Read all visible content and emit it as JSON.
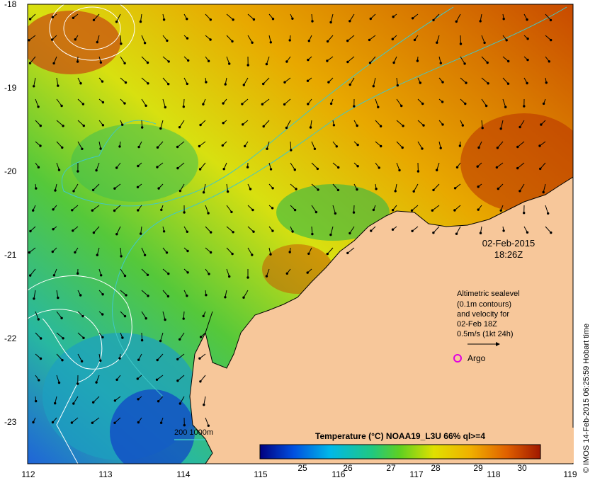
{
  "map": {
    "lon_ticks": [
      "112",
      "113",
      "114",
      "115",
      "116",
      "117",
      "118",
      "119"
    ],
    "lat_ticks": [
      "-18",
      "-19",
      "-20",
      "-21",
      "-22",
      "-23"
    ],
    "date": "02-Feb-2015",
    "time": "18:26Z",
    "legend_lines": [
      "Altimetric sealevel",
      "(0.1m contours)",
      "and velocity for",
      "02-Feb 18Z",
      "0.5m/s (1kt 24h)"
    ],
    "argo_label": "Argo",
    "depth_label": "200  1000m",
    "colorbar_title": "Temperature (°C) NOAA19_L3U 66% ql>=4",
    "colorbar_ticks": [
      "25",
      "26",
      "27",
      "28",
      "29",
      "30"
    ],
    "credit": "© IMOS 14-Feb-2015 06:25:59 Hobart time",
    "colors": {
      "land": "#f7c79a",
      "argo": "#e000e0",
      "bathymetry_contour": "#40c8c8",
      "sealevel_contour": "#ffffff"
    }
  }
}
